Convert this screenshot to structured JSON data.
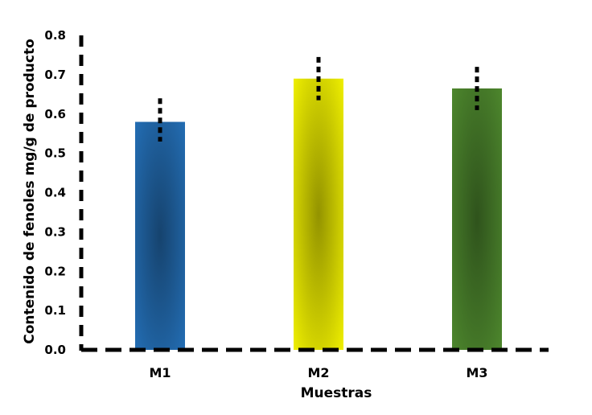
{
  "chart_data": {
    "type": "bar",
    "title": "",
    "xlabel": "Muestras",
    "ylabel": "Contenido de fenoles  mg/g de producto",
    "categories": [
      "M1",
      "M2",
      "M3"
    ],
    "values": [
      0.58,
      0.69,
      0.665
    ],
    "error_low": [
      0.53,
      0.635,
      0.61
    ],
    "error_high": [
      0.64,
      0.745,
      0.72
    ],
    "ylim": [
      0,
      0.8
    ],
    "yticks": [
      "0.0",
      "0.1",
      "0.2",
      "0.3",
      "0.4",
      "0.5",
      "0.6",
      "0.7",
      "0.8"
    ],
    "colors": [
      "#2470b8",
      "#f5f500",
      "#4f8a2e"
    ],
    "grid": false,
    "axis_style": "dashed"
  }
}
